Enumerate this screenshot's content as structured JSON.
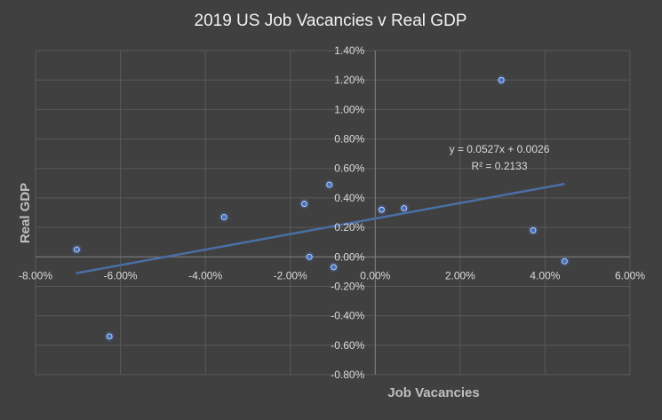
{
  "chart_data": {
    "type": "scatter",
    "title": "2019 US Job Vacancies v Real GDP",
    "xlabel": "Job Vacancies",
    "ylabel": "Real GDP",
    "xlim": [
      -0.08,
      0.06
    ],
    "ylim": [
      -0.008,
      0.014
    ],
    "x_ticks": [
      -0.08,
      -0.06,
      -0.04,
      -0.02,
      0.0,
      0.02,
      0.04,
      0.06
    ],
    "x_tick_labels": [
      "-8.00%",
      "-6.00%",
      "-4.00%",
      "-2.00%",
      "0.00%",
      "2.00%",
      "4.00%",
      "6.00%"
    ],
    "y_ticks": [
      0.014,
      0.012,
      0.01,
      0.008,
      0.006,
      0.004,
      0.002,
      0.0,
      -0.002,
      -0.004,
      -0.006,
      -0.008
    ],
    "y_tick_labels": [
      "1.40%",
      "1.20%",
      "1.00%",
      "0.80%",
      "0.60%",
      "0.40%",
      "0.20%",
      "0.00%",
      "-0.20%",
      "-0.40%",
      "-0.60%",
      "-0.80%"
    ],
    "grid": true,
    "legend": "none",
    "colors": {
      "background": "#404040",
      "gridline": "#595959",
      "marker": "#4472c4",
      "trendline": "#4a6fa5"
    },
    "series": [
      {
        "x": [
          -0.0703,
          -0.0626,
          -0.0356,
          -0.0167,
          -0.0155,
          -0.0108,
          -0.0098,
          0.0015,
          0.0068,
          0.0297,
          0.0372,
          0.0446
        ],
        "y": [
          0.0005,
          -0.0054,
          0.0027,
          0.0036,
          0.0,
          0.0049,
          -0.0007,
          0.0032,
          0.0033,
          0.012,
          0.0018,
          -0.0003
        ]
      }
    ],
    "trendline": {
      "type": "linear",
      "slope": 0.0527,
      "intercept": 0.0026,
      "x_range": [
        -0.0705,
        0.0446
      ],
      "equation": "y = 0.0527x + 0.0026",
      "r_squared": "R² = 0.2133"
    }
  }
}
